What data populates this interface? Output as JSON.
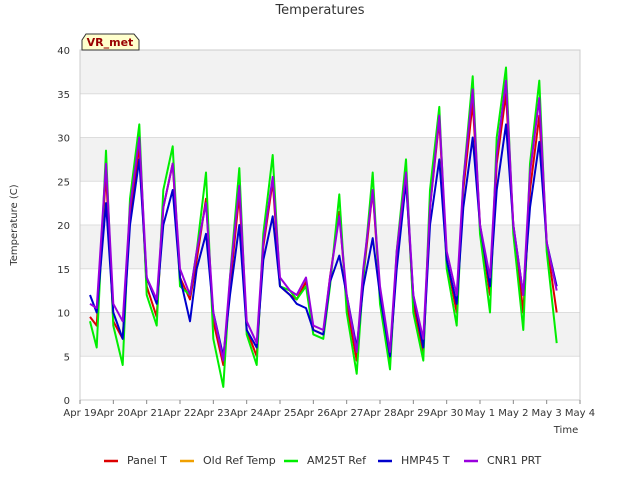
{
  "chart_data": {
    "type": "line",
    "title": "Temperatures",
    "xlabel": "Time",
    "ylabel": "Temperature (C)",
    "annotation": "VR_met",
    "ylim": [
      0,
      40
    ],
    "xlim": [
      0,
      15
    ],
    "grid": true,
    "legend_position": "bottom",
    "y_ticks": [
      "0",
      "5",
      "10",
      "15",
      "20",
      "25",
      "30",
      "35",
      "40"
    ],
    "x_ticks": [
      "Apr 19",
      "Apr 20",
      "Apr 21",
      "Apr 22",
      "Apr 23",
      "Apr 24",
      "Apr 25",
      "Apr 26",
      "Apr 27",
      "Apr 28",
      "Apr 29",
      "Apr 30",
      "May 1",
      "May 2",
      "May 3",
      "May 4"
    ],
    "x_tick_values": [
      0,
      1,
      2,
      3,
      4,
      5,
      6,
      7,
      8,
      9,
      10,
      11,
      12,
      13,
      14,
      15
    ],
    "series": [
      {
        "name": "Panel T",
        "color": "#dd0000",
        "x": [
          0.3,
          0.5,
          0.78,
          1.0,
          1.28,
          1.5,
          1.78,
          2.0,
          2.3,
          2.5,
          2.78,
          3.0,
          3.3,
          3.5,
          3.78,
          4.0,
          4.3,
          4.5,
          4.78,
          5.0,
          5.3,
          5.5,
          5.78,
          6.0,
          6.3,
          6.5,
          6.78,
          7.0,
          7.3,
          7.5,
          7.78,
          8.0,
          8.3,
          8.5,
          8.78,
          9.0,
          9.3,
          9.5,
          9.78,
          10.0,
          10.3,
          10.5,
          10.78,
          11.0,
          11.3,
          11.5,
          11.78,
          12.0,
          12.3,
          12.5,
          12.78,
          13.0,
          13.3,
          13.5,
          13.78,
          14.0,
          14.3
        ],
        "y": [
          9.5,
          8.5,
          26.0,
          9.0,
          7.0,
          21.0,
          29.0,
          13.0,
          9.5,
          22.0,
          27.0,
          14.0,
          11.5,
          16.0,
          23.0,
          9.0,
          4.0,
          13.0,
          23.5,
          8.0,
          5.0,
          17.5,
          25.0,
          13.0,
          12.0,
          11.5,
          13.5,
          8.0,
          7.5,
          14.0,
          21.5,
          11.0,
          4.5,
          14.0,
          24.0,
          12.0,
          4.5,
          16.0,
          25.5,
          11.0,
          5.5,
          22.0,
          32.0,
          16.0,
          10.0,
          24.0,
          34.0,
          20.0,
          12.0,
          27.0,
          35.0,
          20.0,
          10.0,
          24.0,
          32.5,
          18.0,
          10.0
        ]
      },
      {
        "name": "Old Ref Temp",
        "color": "#f0a000",
        "x": [],
        "y": []
      },
      {
        "name": "AM25T Ref",
        "color": "#00ee00",
        "x": [
          0.3,
          0.5,
          0.78,
          1.0,
          1.28,
          1.5,
          1.78,
          2.0,
          2.3,
          2.5,
          2.78,
          3.0,
          3.3,
          3.5,
          3.78,
          4.0,
          4.3,
          4.5,
          4.78,
          5.0,
          5.3,
          5.5,
          5.78,
          6.0,
          6.3,
          6.5,
          6.78,
          7.0,
          7.3,
          7.5,
          7.78,
          8.0,
          8.3,
          8.5,
          8.78,
          9.0,
          9.3,
          9.5,
          9.78,
          10.0,
          10.3,
          10.5,
          10.78,
          11.0,
          11.3,
          11.5,
          11.78,
          12.0,
          12.3,
          12.5,
          12.78,
          13.0,
          13.3,
          13.5,
          13.78,
          14.0,
          14.3
        ],
        "y": [
          9.0,
          6.0,
          28.5,
          8.5,
          4.0,
          23.0,
          31.5,
          12.0,
          8.5,
          24.0,
          29.0,
          13.0,
          12.0,
          17.0,
          26.0,
          7.0,
          1.5,
          14.0,
          26.5,
          7.5,
          4.0,
          19.0,
          28.0,
          13.0,
          12.5,
          11.5,
          13.0,
          7.5,
          7.0,
          13.0,
          23.5,
          10.0,
          3.0,
          14.0,
          26.0,
          11.0,
          3.5,
          17.0,
          27.5,
          10.0,
          4.5,
          24.0,
          33.5,
          15.0,
          8.5,
          25.0,
          37.0,
          19.0,
          10.0,
          30.0,
          38.0,
          19.0,
          8.0,
          27.0,
          36.5,
          17.0,
          6.5
        ]
      },
      {
        "name": "HMP45 T",
        "color": "#0000cc",
        "x": [
          0.3,
          0.5,
          0.78,
          1.0,
          1.28,
          1.5,
          1.78,
          2.0,
          2.3,
          2.5,
          2.78,
          3.0,
          3.3,
          3.5,
          3.78,
          4.0,
          4.3,
          4.5,
          4.78,
          5.0,
          5.3,
          5.5,
          5.78,
          6.0,
          6.3,
          6.5,
          6.78,
          7.0,
          7.3,
          7.5,
          7.78,
          8.0,
          8.3,
          8.5,
          8.78,
          9.0,
          9.3,
          9.5,
          9.78,
          10.0,
          10.3,
          10.5,
          10.78,
          11.0,
          11.3,
          11.5,
          11.78,
          12.0,
          12.3,
          12.5,
          12.78,
          13.0,
          13.3,
          13.5,
          13.78,
          14.0,
          14.3
        ],
        "y": [
          12.0,
          10.0,
          22.5,
          10.0,
          7.0,
          20.0,
          27.5,
          14.0,
          11.0,
          20.0,
          24.0,
          14.0,
          9.0,
          15.0,
          19.0,
          10.0,
          5.0,
          12.0,
          20.0,
          8.0,
          6.0,
          16.0,
          21.0,
          13.0,
          12.0,
          11.0,
          10.5,
          8.0,
          7.5,
          13.5,
          16.5,
          12.0,
          6.0,
          13.0,
          18.5,
          12.0,
          5.0,
          15.0,
          25.0,
          12.0,
          6.0,
          20.0,
          27.5,
          16.0,
          11.0,
          22.0,
          30.0,
          20.0,
          13.0,
          24.0,
          31.5,
          20.0,
          12.0,
          22.0,
          29.5,
          18.0,
          13.0
        ]
      },
      {
        "name": "CNR1 PRT",
        "color": "#9900dd",
        "x": [
          0.3,
          0.5,
          0.78,
          1.0,
          1.28,
          1.5,
          1.78,
          2.0,
          2.3,
          2.5,
          2.78,
          3.0,
          3.3,
          3.5,
          3.78,
          4.0,
          4.3,
          4.5,
          4.78,
          5.0,
          5.3,
          5.5,
          5.78,
          6.0,
          6.3,
          6.5,
          6.78,
          7.0,
          7.3,
          7.5,
          7.78,
          8.0,
          8.3,
          8.5,
          8.78,
          9.0,
          9.3,
          9.5,
          9.78,
          10.0,
          10.3,
          10.5,
          10.78,
          11.0,
          11.3,
          11.5,
          11.78,
          12.0,
          12.3,
          12.5,
          12.78,
          13.0,
          13.3,
          13.5,
          13.78,
          14.0,
          14.3
        ],
        "y": [
          11.0,
          10.5,
          27.0,
          11.0,
          9.0,
          22.0,
          30.0,
          14.0,
          11.5,
          22.0,
          27.0,
          15.0,
          12.0,
          17.0,
          22.5,
          10.0,
          4.5,
          14.0,
          24.5,
          9.0,
          6.5,
          18.0,
          25.5,
          14.0,
          12.5,
          12.0,
          14.0,
          8.5,
          8.0,
          14.0,
          21.0,
          12.0,
          5.5,
          15.0,
          24.0,
          13.0,
          5.5,
          17.0,
          26.0,
          12.0,
          7.0,
          22.0,
          32.5,
          17.0,
          12.0,
          25.0,
          35.5,
          20.0,
          14.0,
          28.0,
          36.5,
          20.0,
          12.0,
          26.0,
          34.5,
          18.0,
          12.5
        ]
      }
    ]
  }
}
